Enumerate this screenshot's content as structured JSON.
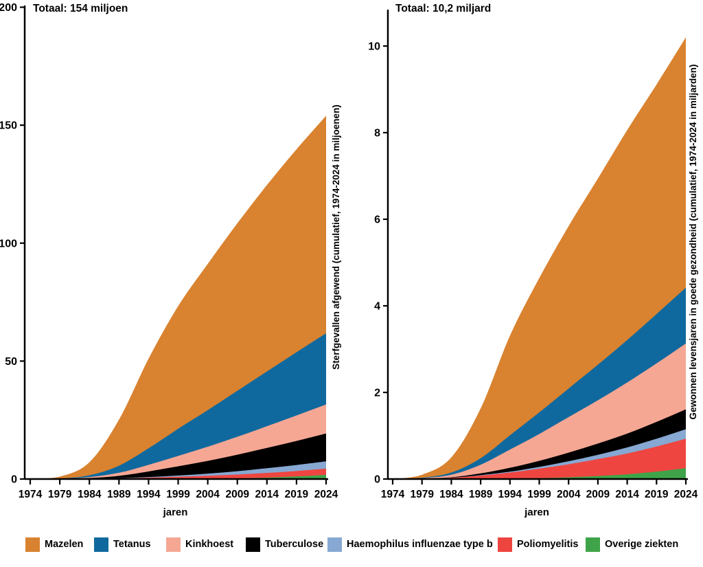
{
  "page": {
    "background": "#FFFFFF"
  },
  "legend": {
    "items": [
      {
        "label": "Mazelen",
        "color": "#D9822F"
      },
      {
        "label": "Tetanus",
        "color": "#10699E"
      },
      {
        "label": "Kinkhoest",
        "color": "#F5A794"
      },
      {
        "label": "Tuberculose",
        "color": "#000000"
      },
      {
        "label": "Haemophilus influenzae type b",
        "color": "#87A8D2"
      },
      {
        "label": "Poliomyelitis",
        "color": "#EE4540"
      },
      {
        "label": "Overige ziekten",
        "color": "#3FA449"
      }
    ]
  },
  "chart_data": [
    {
      "type": "area",
      "stacked": true,
      "title": "Totaal: 154 miljoen",
      "xlabel": "jaren",
      "ylabel": "Sterfgevallen afgewend (cumulatief, 1974-2024 in miljoenen)",
      "x": [
        1974,
        1979,
        1984,
        1989,
        1994,
        1999,
        2004,
        2009,
        2014,
        2019,
        2024
      ],
      "ylim": [
        0,
        200
      ],
      "yticks": [
        0,
        50,
        100,
        150,
        200
      ],
      "grid": false,
      "legend_position": "bottom",
      "series_order": "top-to-bottom",
      "series": [
        {
          "name": "Mazelen",
          "color": "#D9822F",
          "values": [
            0,
            0.8,
            5.5,
            19.5,
            38,
            52,
            62,
            71,
            79,
            86,
            92.2
          ]
        },
        {
          "name": "Tetanus",
          "color": "#10699E",
          "values": [
            0,
            0.1,
            0.8,
            3,
            7,
            11.5,
            15.5,
            19.5,
            23.2,
            26.8,
            30.2
          ]
        },
        {
          "name": "Kinkhoest",
          "color": "#F5A794",
          "values": [
            0,
            0.05,
            0.4,
            1.3,
            2.8,
            4.4,
            6,
            7.6,
            9.2,
            10.8,
            12.3
          ]
        },
        {
          "name": "Tuberculose",
          "color": "#000000",
          "values": [
            0,
            0.05,
            0.3,
            1,
            2.4,
            3.9,
            5.4,
            7,
            8.6,
            10.2,
            11.8
          ]
        },
        {
          "name": "Haemophilus influenzae type b",
          "color": "#87A8D2",
          "values": [
            0,
            0,
            0,
            0.05,
            0.2,
            0.5,
            0.9,
            1.4,
            2,
            2.55,
            3.1
          ]
        },
        {
          "name": "Poliomyelitis",
          "color": "#EE4540",
          "values": [
            0,
            0.02,
            0.1,
            0.3,
            0.6,
            0.95,
            1.3,
            1.65,
            2,
            2.3,
            2.6
          ]
        },
        {
          "name": "Overige ziekten",
          "color": "#3FA449",
          "values": [
            0,
            0,
            0,
            0,
            0.02,
            0.05,
            0.1,
            0.25,
            0.6,
            1.1,
            1.8
          ]
        }
      ]
    },
    {
      "type": "area",
      "stacked": true,
      "title": "Totaal: 10,2 miljard",
      "xlabel": "jaren",
      "ylabel": "Gewonnen levensjaren in goede gezondheid (cumulatief, 1974-2024 in miljarden)",
      "x": [
        1974,
        1979,
        1984,
        1989,
        1994,
        1999,
        2004,
        2009,
        2014,
        2019,
        2024
      ],
      "ylim": [
        0,
        10.5
      ],
      "yticks": [
        0,
        2,
        4,
        6,
        8,
        10
      ],
      "grid": false,
      "legend_position": "bottom",
      "series_order": "top-to-bottom",
      "series": [
        {
          "name": "Mazelen",
          "color": "#D9822F",
          "values": [
            0,
            0.07,
            0.35,
            1.15,
            2.3,
            3.1,
            3.75,
            4.3,
            4.85,
            5.3,
            5.78
          ]
        },
        {
          "name": "Tetanus",
          "color": "#10699E",
          "values": [
            0,
            0.01,
            0.05,
            0.15,
            0.33,
            0.5,
            0.66,
            0.82,
            0.98,
            1.14,
            1.29
          ]
        },
        {
          "name": "Kinkhoest",
          "color": "#F5A794",
          "values": [
            0,
            0.01,
            0.06,
            0.2,
            0.42,
            0.62,
            0.82,
            1.0,
            1.18,
            1.35,
            1.52
          ]
        },
        {
          "name": "Tuberculose",
          "color": "#000000",
          "values": [
            0,
            0,
            0.01,
            0.04,
            0.09,
            0.14,
            0.2,
            0.26,
            0.32,
            0.39,
            0.46
          ]
        },
        {
          "name": "Haemophilus influenzae type b",
          "color": "#87A8D2",
          "values": [
            0,
            0,
            0,
            0.01,
            0.02,
            0.04,
            0.07,
            0.1,
            0.14,
            0.18,
            0.22
          ]
        },
        {
          "name": "Poliomyelitis",
          "color": "#EE4540",
          "values": [
            0,
            0.01,
            0.03,
            0.08,
            0.14,
            0.22,
            0.3,
            0.39,
            0.48,
            0.58,
            0.68
          ]
        },
        {
          "name": "Overige ziekten",
          "color": "#3FA449",
          "values": [
            0,
            0,
            0,
            0,
            0.01,
            0.02,
            0.04,
            0.07,
            0.11,
            0.17,
            0.25
          ]
        }
      ]
    }
  ]
}
